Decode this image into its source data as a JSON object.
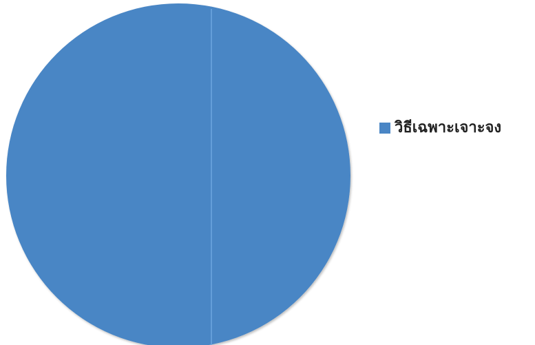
{
  "chart_data": {
    "type": "pie",
    "categories": [
      "วิธีเฉพาะเจาะจง"
    ],
    "values": [
      100
    ],
    "colors": [
      "#4a86c5"
    ],
    "legend_position": "right"
  }
}
